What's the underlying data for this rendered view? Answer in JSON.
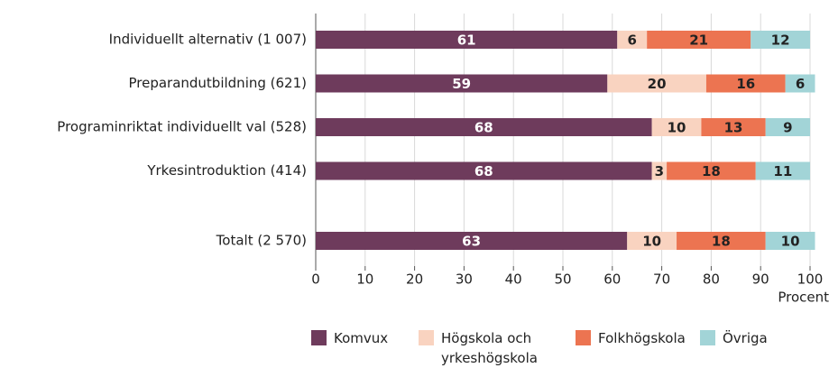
{
  "chart_data": {
    "type": "stacked-barh",
    "categories": [
      "Individuellt alternativ (1 007)",
      "Preparandutbildning (621)",
      "Programinriktat individuellt val (528)",
      "Yrkesintroduktion (414)",
      null,
      "Totalt (2 570)"
    ],
    "series": [
      {
        "name": "Komvux",
        "color": "#6e3b5c",
        "values": [
          61,
          59,
          68,
          68,
          null,
          63
        ]
      },
      {
        "name": "Högskola och yrkeshögskola",
        "color": "#f9d3c0",
        "values": [
          6,
          20,
          10,
          3,
          null,
          10
        ]
      },
      {
        "name": "Folkhögskola",
        "color": "#ec7451",
        "values": [
          21,
          16,
          13,
          18,
          null,
          18
        ]
      },
      {
        "name": "Övriga",
        "color": "#a2d4d7",
        "values": [
          12,
          6,
          9,
          11,
          null,
          10
        ]
      }
    ],
    "xlabel": "Procent",
    "xlim": [
      0,
      100
    ],
    "xticks": [
      0,
      10,
      20,
      30,
      40,
      50,
      60,
      70,
      80,
      90,
      100
    ],
    "grid": true,
    "legend": "bottom"
  }
}
